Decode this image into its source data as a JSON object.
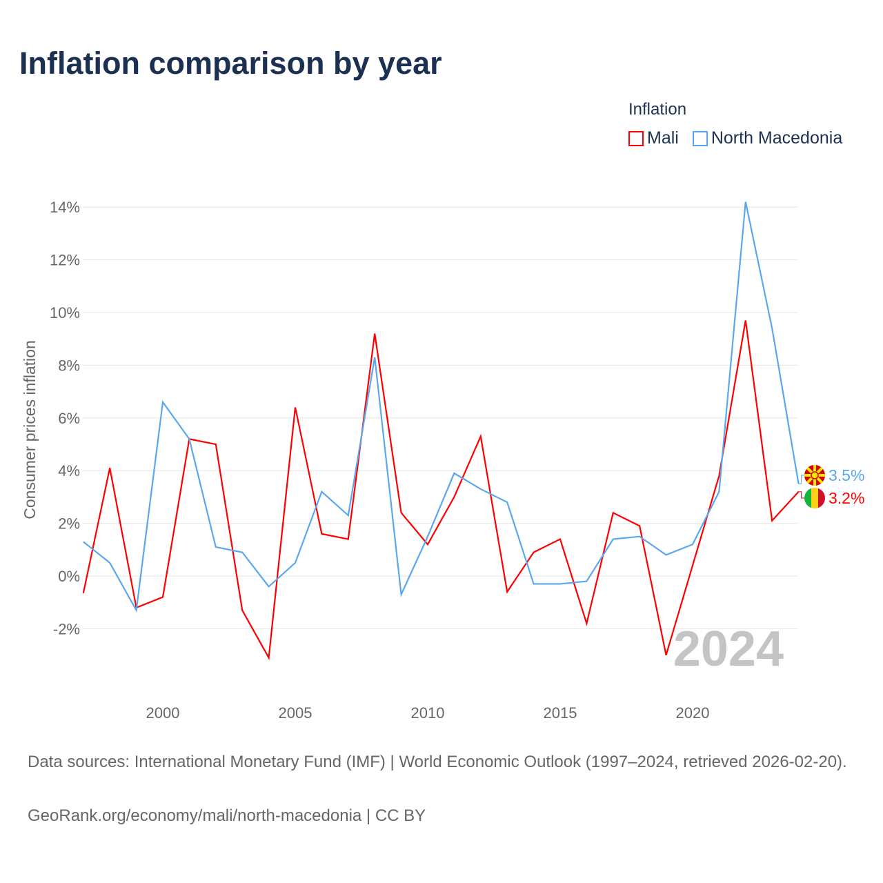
{
  "title": "Inflation comparison by year",
  "legend": {
    "title": "Inflation",
    "items": [
      "Mali",
      "North Macedonia"
    ]
  },
  "footer": {
    "sources": "Data sources: International Monetary Fund (IMF) | World Economic Outlook (1997–2024, retrieved 2026-02-20).",
    "link": "GeoRank.org/economy/mali/north-macedonia | CC BY"
  },
  "chart_data": {
    "type": "line",
    "title": "Inflation comparison by year",
    "xlabel": "",
    "ylabel": "Consumer prices inflation",
    "watermark_year": "2024",
    "x": [
      1997,
      1998,
      1999,
      2000,
      2001,
      2002,
      2003,
      2004,
      2005,
      2006,
      2007,
      2008,
      2009,
      2010,
      2011,
      2012,
      2013,
      2014,
      2015,
      2016,
      2017,
      2018,
      2019,
      2020,
      2021,
      2022,
      2023,
      2024
    ],
    "xticks": [
      2000,
      2005,
      2010,
      2015,
      2020
    ],
    "yticks": [
      -2,
      0,
      2,
      4,
      6,
      8,
      10,
      12,
      14
    ],
    "xlim": [
      1997,
      2024
    ],
    "ylim": [
      -4.5,
      15
    ],
    "series": [
      {
        "name": "Mali",
        "color": "#ff0000",
        "end_label": "3.2%",
        "values": [
          -0.65,
          4.1,
          -1.2,
          -0.8,
          5.2,
          5.0,
          -1.3,
          -3.1,
          6.4,
          1.6,
          1.4,
          9.2,
          2.4,
          1.2,
          3.0,
          5.3,
          -0.6,
          0.9,
          1.4,
          -1.8,
          2.4,
          1.9,
          -3.0,
          0.4,
          3.8,
          9.7,
          2.1,
          3.2
        ]
      },
      {
        "name": "North Macedonia",
        "color": "#5aa7ee",
        "end_label": "3.5%",
        "values": [
          1.3,
          0.5,
          -1.3,
          6.6,
          5.2,
          1.1,
          0.9,
          -0.4,
          0.5,
          3.2,
          2.3,
          8.3,
          -0.7,
          1.5,
          3.9,
          3.3,
          2.8,
          -0.3,
          -0.3,
          -0.2,
          1.4,
          1.5,
          0.8,
          1.2,
          3.2,
          14.2,
          9.4,
          3.5
        ]
      }
    ]
  }
}
